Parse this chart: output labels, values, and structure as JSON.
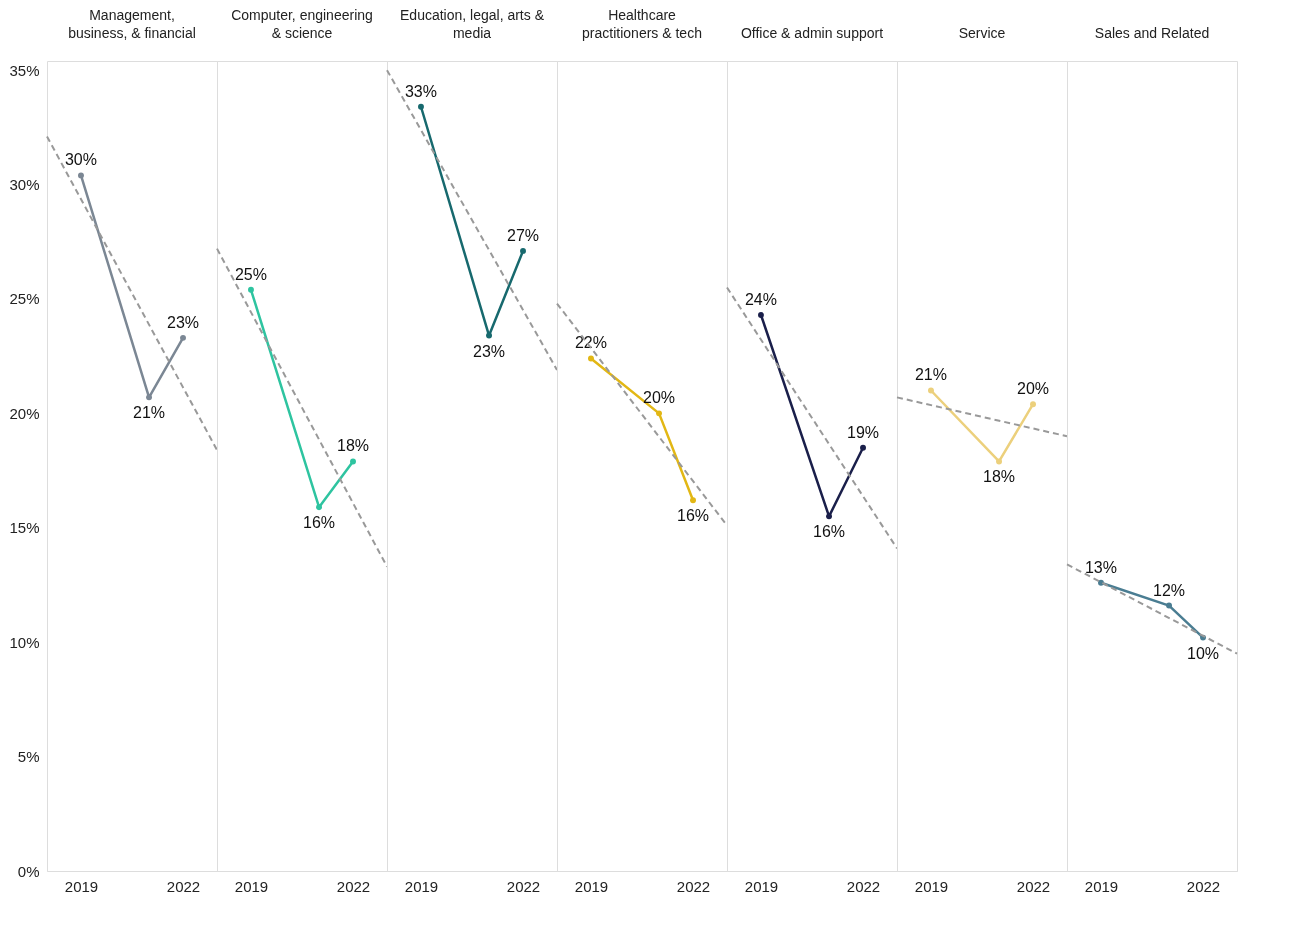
{
  "chart_data": [
    {
      "type": "line",
      "title": "Management,\nbusiness, & financial",
      "x": [
        "2019",
        "2021",
        "2022"
      ],
      "xlim": [
        "2018",
        "2023"
      ],
      "xticks": [
        "2019",
        "2022"
      ],
      "ylim": [
        0,
        35.4
      ],
      "yticks": [
        {
          "value": 0,
          "label": "0%"
        },
        {
          "value": 5,
          "label": "5%"
        },
        {
          "value": 10,
          "label": "10%"
        },
        {
          "value": 15,
          "label": "15%"
        },
        {
          "value": 20,
          "label": "20%"
        },
        {
          "value": 25,
          "label": "25%"
        },
        {
          "value": 30,
          "label": "30%"
        },
        {
          "value": 35,
          "label": "35%"
        }
      ],
      "marker": "circle",
      "grid": false,
      "series": [
        {
          "color": "#7b8794",
          "values": [
            30.4,
            20.7,
            23.3
          ],
          "value_labels": [
            "30%",
            "21%",
            "23%"
          ]
        },
        {
          "type": "line",
          "x": [
            "2018",
            "2023"
          ],
          "values": [
            32.1,
            18.4
          ],
          "color": "#999999",
          "line_style": "dashed",
          "marker": "none"
        }
      ]
    },
    {
      "type": "line",
      "title": "Computer, engineering\n& science",
      "x": [
        "2019",
        "2021",
        "2022"
      ],
      "xlim": [
        "2018",
        "2023"
      ],
      "xticks": [
        "2019",
        "2022"
      ],
      "ylim": [
        0,
        35.4
      ],
      "tick_labels": "x",
      "marker": "circle",
      "grid": false,
      "series": [
        {
          "color": "#2ec4a0",
          "values": [
            25.4,
            15.9,
            17.9
          ],
          "value_labels": [
            "25%",
            "16%",
            "18%"
          ]
        },
        {
          "type": "line",
          "x": [
            "2018",
            "2023"
          ],
          "values": [
            27.2,
            13.3
          ],
          "color": "#999999",
          "line_style": "dashed",
          "marker": "none"
        }
      ]
    },
    {
      "type": "line",
      "title": "Education, legal, arts &\nmedia",
      "x": [
        "2019",
        "2021",
        "2022"
      ],
      "xlim": [
        "2018",
        "2023"
      ],
      "xticks": [
        "2019",
        "2022"
      ],
      "ylim": [
        0,
        35.4
      ],
      "tick_labels": "x",
      "marker": "circle",
      "grid": false,
      "series": [
        {
          "color": "#17696e",
          "values": [
            33.4,
            23.4,
            27.1
          ],
          "value_labels": [
            "33%",
            "23%",
            "27%"
          ]
        },
        {
          "type": "line",
          "x": [
            "2018",
            "2023"
          ],
          "values": [
            35,
            21.9
          ],
          "color": "#999999",
          "line_style": "dashed",
          "marker": "none"
        }
      ]
    },
    {
      "type": "line",
      "title": "Healthcare\npractitioners & tech",
      "x": [
        "2019",
        "2021",
        "2022"
      ],
      "xlim": [
        "2018",
        "2023"
      ],
      "xticks": [
        "2019",
        "2022"
      ],
      "ylim": [
        0,
        35.4
      ],
      "tick_labels": "x",
      "marker": "circle",
      "grid": false,
      "series": [
        {
          "color": "#e2b714",
          "values": [
            22.4,
            20.0,
            16.2
          ],
          "value_labels": [
            "22%",
            "20%",
            "16%"
          ]
        },
        {
          "type": "line",
          "x": [
            "2018",
            "2023"
          ],
          "values": [
            24.8,
            15.1
          ],
          "color": "#999999",
          "line_style": "dashed",
          "marker": "none"
        }
      ]
    },
    {
      "type": "line",
      "title": "Office & admin support",
      "x": [
        "2019",
        "2021",
        "2022"
      ],
      "xlim": [
        "2018",
        "2023"
      ],
      "xticks": [
        "2019",
        "2022"
      ],
      "ylim": [
        0,
        35.4
      ],
      "tick_labels": "x",
      "marker": "circle",
      "grid": false,
      "series": [
        {
          "color": "#1a1f4a",
          "values": [
            24.3,
            15.5,
            18.5
          ],
          "value_labels": [
            "24%",
            "16%",
            "19%"
          ]
        },
        {
          "type": "line",
          "x": [
            "2018",
            "2023"
          ],
          "values": [
            25.5,
            14.1
          ],
          "color": "#999999",
          "line_style": "dashed",
          "marker": "none"
        }
      ]
    },
    {
      "type": "line",
      "title": "Service",
      "x": [
        "2019",
        "2021",
        "2022"
      ],
      "xlim": [
        "2018",
        "2023"
      ],
      "xticks": [
        "2019",
        "2022"
      ],
      "ylim": [
        0,
        35.4
      ],
      "tick_labels": "x",
      "marker": "circle",
      "grid": false,
      "series": [
        {
          "color": "#ecd07c",
          "values": [
            21.0,
            17.9,
            20.4
          ],
          "value_labels": [
            "21%",
            "18%",
            "20%"
          ]
        },
        {
          "type": "line",
          "x": [
            "2018",
            "2023"
          ],
          "values": [
            20.7,
            19.0
          ],
          "color": "#999999",
          "line_style": "dashed",
          "marker": "none"
        }
      ]
    },
    {
      "type": "line",
      "title": "Sales and Related",
      "x": [
        "2019",
        "2021",
        "2022"
      ],
      "xlim": [
        "2018",
        "2023"
      ],
      "xticks": [
        "2019",
        "2022"
      ],
      "ylim": [
        0,
        35.4
      ],
      "tick_labels": "x",
      "marker": "circle",
      "grid": false,
      "series": [
        {
          "color": "#4a7d92",
          "values": [
            12.6,
            11.6,
            10.2
          ],
          "value_labels": [
            "13%",
            "12%",
            "10%"
          ]
        },
        {
          "type": "line",
          "x": [
            "2018",
            "2023"
          ],
          "values": [
            13.4,
            9.5
          ],
          "color": "#999999",
          "line_style": "dashed",
          "marker": "none"
        }
      ]
    }
  ]
}
